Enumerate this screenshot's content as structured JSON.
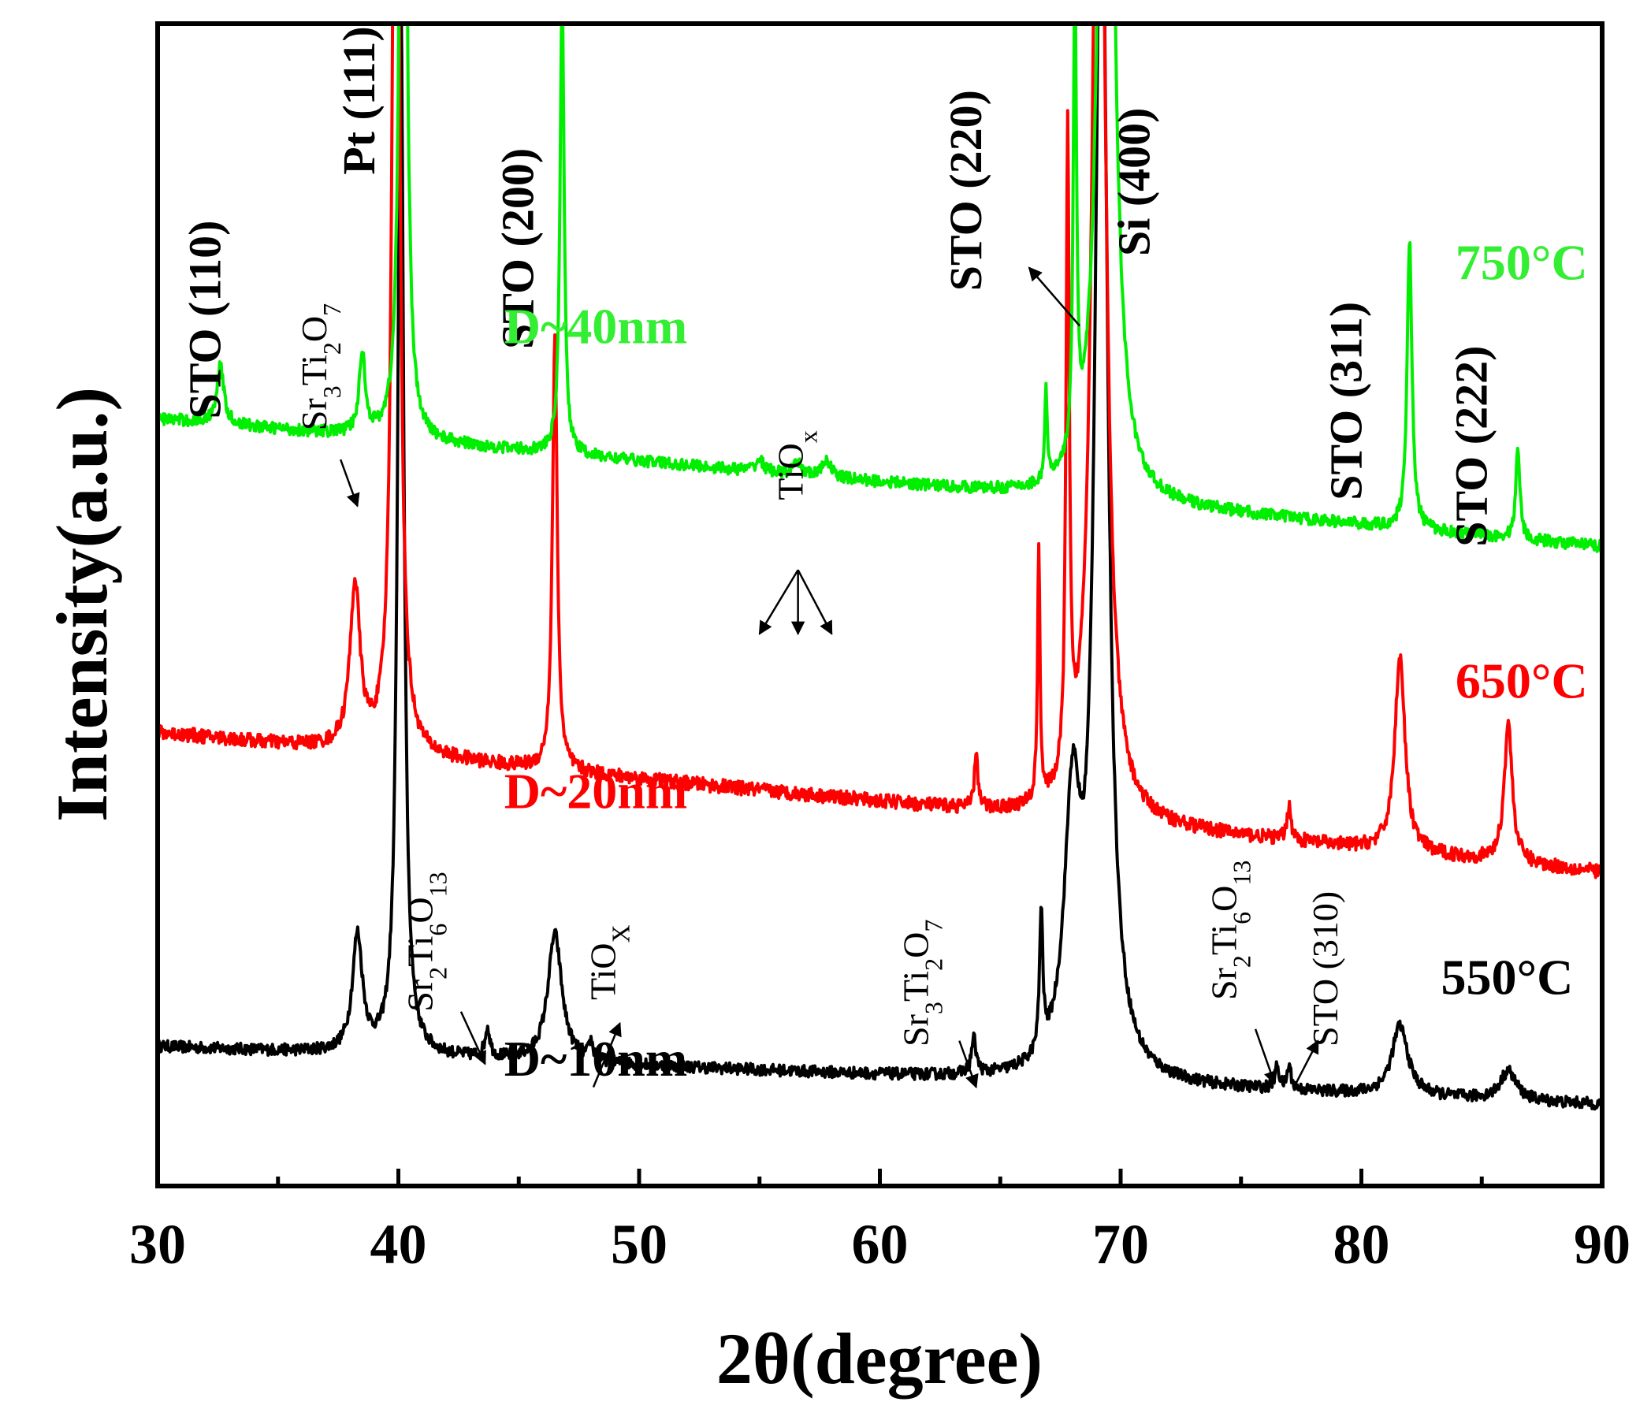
{
  "chart_data": {
    "type": "line",
    "title": "",
    "xlabel": "2θ(degree)",
    "ylabel": "Intensity(a.u.)",
    "xlim": [
      30,
      90
    ],
    "ylim": [
      0,
      100
    ],
    "x_ticks": [
      30,
      40,
      50,
      60,
      70,
      80,
      90
    ],
    "grid": false,
    "series": [
      {
        "name": "550°C",
        "size_label": "D~10nm",
        "color": "#000000",
        "baseline": 12,
        "baseline_end": 7,
        "noise": 0.5,
        "peaks": [
          {
            "x": 38.3,
            "h": 10,
            "w": 0.25
          },
          {
            "x": 40.1,
            "h": 92,
            "w": 0.15
          },
          {
            "x": 43.7,
            "h": 2.5,
            "w": 0.12
          },
          {
            "x": 46.5,
            "h": 11,
            "w": 0.35
          },
          {
            "x": 48.0,
            "h": 1.5,
            "w": 0.1
          },
          {
            "x": 63.9,
            "h": 3,
            "w": 0.12
          },
          {
            "x": 66.7,
            "h": 12,
            "w": 0.08
          },
          {
            "x": 68.0,
            "h": 22,
            "w": 0.4
          },
          {
            "x": 69.2,
            "h": 110,
            "w": 0.3
          },
          {
            "x": 76.5,
            "h": 2,
            "w": 0.1
          },
          {
            "x": 77.0,
            "h": 2,
            "w": 0.1
          },
          {
            "x": 81.6,
            "h": 6,
            "w": 0.4
          },
          {
            "x": 86.1,
            "h": 2.5,
            "w": 0.4
          }
        ]
      },
      {
        "name": "650°C",
        "size_label": "D~20nm",
        "color": "#ff0000",
        "baseline": 39,
        "baseline_end": 27,
        "noise": 0.6,
        "peaks": [
          {
            "x": 38.2,
            "h": 14,
            "w": 0.25
          },
          {
            "x": 39.9,
            "h": 120,
            "w": 0.15
          },
          {
            "x": 46.5,
            "h": 37,
            "w": 0.12
          },
          {
            "x": 64.0,
            "h": 5,
            "w": 0.08
          },
          {
            "x": 66.6,
            "h": 22,
            "w": 0.06
          },
          {
            "x": 67.8,
            "h": 55,
            "w": 0.08
          },
          {
            "x": 69.1,
            "h": 110,
            "w": 0.3
          },
          {
            "x": 77.0,
            "h": 3,
            "w": 0.1
          },
          {
            "x": 81.6,
            "h": 17,
            "w": 0.25
          },
          {
            "x": 86.1,
            "h": 12,
            "w": 0.2
          }
        ]
      },
      {
        "name": "750°C",
        "size_label": "D~40nm",
        "color": "#00ee00",
        "baseline": 66,
        "baseline_end": 55,
        "noise": 0.5,
        "peaks": [
          {
            "x": 32.6,
            "h": 5,
            "w": 0.18
          },
          {
            "x": 38.5,
            "h": 7,
            "w": 0.15
          },
          {
            "x": 40.2,
            "h": 120,
            "w": 0.12
          },
          {
            "x": 46.8,
            "h": 40,
            "w": 0.1
          },
          {
            "x": 55.0,
            "h": 1,
            "w": 0.2
          },
          {
            "x": 56.6,
            "h": 1,
            "w": 0.2
          },
          {
            "x": 57.8,
            "h": 1.5,
            "w": 0.2
          },
          {
            "x": 66.9,
            "h": 8,
            "w": 0.06
          },
          {
            "x": 68.1,
            "h": 40,
            "w": 0.08
          },
          {
            "x": 69.4,
            "h": 110,
            "w": 0.3
          },
          {
            "x": 82.0,
            "h": 25,
            "w": 0.12
          },
          {
            "x": 86.5,
            "h": 8,
            "w": 0.1
          }
        ]
      }
    ],
    "peak_labels": [
      {
        "text": "STO (110)",
        "x": 32.6,
        "y": 66
      },
      {
        "text": "Pt (111)",
        "x": 39.0,
        "y": 87
      },
      {
        "text": "STO (200)",
        "x": 45.6,
        "y": 72
      },
      {
        "text": "STO (220)",
        "x": 64.2,
        "y": 77
      },
      {
        "text": "Si (400)",
        "x": 71.2,
        "y": 80
      },
      {
        "text": "STO (311)",
        "x": 80.0,
        "y": 59
      },
      {
        "text": "STO (222)",
        "x": 85.2,
        "y": 55
      }
    ],
    "phase_labels": [
      {
        "base": "Sr",
        "s1": "3",
        "mid": "Ti",
        "s2": "2",
        "end": "O",
        "s3": "7",
        "x": 37.0,
        "y": 65
      },
      {
        "base": "Ti",
        "s1": "",
        "mid": "O",
        "s2": "x",
        "end": "",
        "s3": "",
        "x": 56.8,
        "y": 59
      },
      {
        "base": "Sr",
        "s1": "2",
        "mid": "Ti",
        "s2": "6",
        "end": "O",
        "s3": "13",
        "x": 41.4,
        "y": 15
      },
      {
        "base": "Ti",
        "s1": "",
        "mid": "O",
        "s2": "X",
        "end": "",
        "s3": "",
        "x": 49.0,
        "y": 16
      },
      {
        "base": "Sr",
        "s1": "3",
        "mid": "Ti",
        "s2": "2",
        "end": "O",
        "s3": "7",
        "x": 62.0,
        "y": 12
      },
      {
        "base": "Sr",
        "s1": "2",
        "mid": "Ti",
        "s2": "6",
        "end": "O",
        "s3": "13",
        "x": 74.8,
        "y": 16
      },
      {
        "base": "STO (310)",
        "s1": "",
        "mid": "",
        "s2": "",
        "end": "",
        "s3": "",
        "x": 79.0,
        "y": 12
      }
    ],
    "temperature_labels": [
      "750°C",
      "650°C",
      "550°C"
    ],
    "size_labels": [
      "D~40nm",
      "D~20nm",
      "D~10nm"
    ]
  }
}
